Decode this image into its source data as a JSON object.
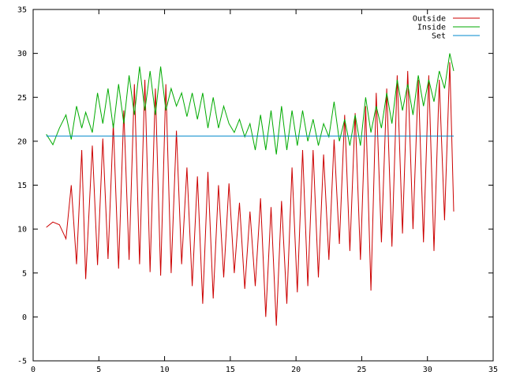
{
  "chart_data": {
    "type": "line",
    "title": "",
    "xlabel": "",
    "ylabel": "",
    "xlim": [
      0,
      35
    ],
    "ylim": [
      -5,
      35
    ],
    "xticks": [
      0,
      5,
      10,
      15,
      20,
      25,
      30,
      35
    ],
    "yticks": [
      -5,
      0,
      5,
      10,
      15,
      20,
      25,
      30,
      35
    ],
    "grid": false,
    "legend_position": "top-right",
    "series": [
      {
        "name": "Outside",
        "color": "#cc0000",
        "x": [
          1.0,
          1.5,
          2.0,
          2.5,
          2.9,
          3.3,
          3.7,
          4.0,
          4.5,
          4.9,
          5.3,
          5.7,
          6.1,
          6.5,
          6.9,
          7.3,
          7.7,
          8.1,
          8.5,
          8.9,
          9.3,
          9.7,
          10.1,
          10.5,
          10.9,
          11.3,
          11.7,
          12.1,
          12.5,
          12.9,
          13.3,
          13.7,
          14.1,
          14.5,
          14.9,
          15.3,
          15.7,
          16.1,
          16.5,
          16.9,
          17.3,
          17.7,
          18.1,
          18.5,
          18.9,
          19.3,
          19.7,
          20.1,
          20.5,
          20.9,
          21.3,
          21.7,
          22.1,
          22.5,
          22.9,
          23.3,
          23.7,
          24.1,
          24.5,
          24.9,
          25.3,
          25.7,
          26.1,
          26.5,
          26.9,
          27.3,
          27.7,
          28.1,
          28.5,
          28.9,
          29.3,
          29.7,
          30.1,
          30.5,
          30.9,
          31.3,
          31.7,
          32.0
        ],
        "y": [
          10.2,
          10.8,
          10.5,
          8.9,
          15.0,
          6.0,
          19.0,
          4.3,
          19.5,
          5.9,
          20.3,
          6.6,
          22.0,
          5.5,
          23.5,
          6.5,
          26.5,
          6.0,
          27.0,
          5.1,
          26.0,
          4.7,
          26.5,
          5.0,
          21.2,
          6.0,
          17.0,
          3.5,
          16.0,
          1.5,
          16.5,
          2.1,
          15.0,
          4.5,
          15.2,
          5.0,
          13.0,
          3.2,
          12.0,
          3.5,
          13.5,
          0.0,
          12.5,
          -1.0,
          13.2,
          1.5,
          17.0,
          2.8,
          19.0,
          3.5,
          19.0,
          4.5,
          18.5,
          6.5,
          20.2,
          8.3,
          23.0,
          7.5,
          23.2,
          6.5,
          24.0,
          3.0,
          25.5,
          8.5,
          26.0,
          8.0,
          27.5,
          9.5,
          28.0,
          10.0,
          27.0,
          8.5,
          27.5,
          7.5,
          27.0,
          11.0,
          29.0,
          12.0
        ]
      },
      {
        "name": "Inside",
        "color": "#00aa00",
        "x": [
          1.0,
          1.5,
          2.0,
          2.5,
          2.9,
          3.3,
          3.7,
          4.0,
          4.5,
          4.9,
          5.3,
          5.7,
          6.1,
          6.5,
          6.9,
          7.3,
          7.7,
          8.1,
          8.5,
          8.9,
          9.3,
          9.7,
          10.1,
          10.5,
          10.9,
          11.3,
          11.7,
          12.1,
          12.5,
          12.9,
          13.3,
          13.7,
          14.1,
          14.5,
          14.9,
          15.3,
          15.7,
          16.1,
          16.5,
          16.9,
          17.3,
          17.7,
          18.1,
          18.5,
          18.9,
          19.3,
          19.7,
          20.1,
          20.5,
          20.9,
          21.3,
          21.7,
          22.1,
          22.5,
          22.9,
          23.3,
          23.7,
          24.1,
          24.5,
          24.9,
          25.3,
          25.7,
          26.1,
          26.5,
          26.9,
          27.3,
          27.7,
          28.1,
          28.5,
          28.9,
          29.3,
          29.7,
          30.1,
          30.5,
          30.9,
          31.3,
          31.7,
          32.0
        ],
        "y": [
          20.8,
          19.6,
          21.5,
          23.0,
          20.2,
          24.0,
          21.5,
          23.3,
          21.0,
          25.5,
          22.0,
          26.0,
          21.5,
          26.5,
          22.0,
          27.5,
          23.0,
          28.5,
          23.5,
          28.0,
          23.0,
          28.5,
          23.5,
          26.0,
          24.0,
          25.5,
          22.8,
          25.5,
          22.5,
          25.5,
          21.5,
          25.0,
          21.5,
          24.0,
          22.0,
          21.0,
          22.5,
          20.5,
          22.0,
          19.0,
          23.0,
          19.0,
          23.5,
          18.5,
          24.0,
          19.0,
          23.5,
          19.5,
          23.5,
          20.0,
          22.5,
          19.5,
          22.0,
          20.5,
          24.5,
          20.0,
          22.5,
          19.5,
          23.0,
          19.5,
          25.0,
          21.0,
          24.0,
          21.5,
          25.5,
          22.0,
          27.0,
          23.5,
          26.5,
          23.0,
          27.5,
          24.0,
          27.0,
          24.5,
          28.0,
          26.0,
          30.0,
          28.0
        ]
      },
      {
        "name": "Set",
        "color": "#0088cc",
        "x": [
          1.0,
          32.0
        ],
        "y": [
          20.6,
          20.6
        ]
      }
    ]
  }
}
